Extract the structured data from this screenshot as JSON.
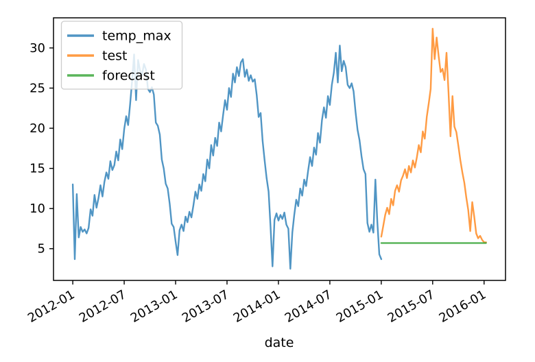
{
  "figure": {
    "background": "#ffffff"
  },
  "chart_data": {
    "type": "line",
    "title": "",
    "xlabel": "date",
    "ylabel": "",
    "grid": false,
    "x_unit": "months since 2012-01",
    "xlim": [
      -2.25,
      50.5
    ],
    "ylim": [
      1.05,
      33.75
    ],
    "xticks": [
      {
        "pos": 0,
        "label": "2012-01"
      },
      {
        "pos": 6,
        "label": "2012-07"
      },
      {
        "pos": 12,
        "label": "2013-01"
      },
      {
        "pos": 18,
        "label": "2013-07"
      },
      {
        "pos": 24,
        "label": "2014-01"
      },
      {
        "pos": 30,
        "label": "2014-07"
      },
      {
        "pos": 36,
        "label": "2015-01"
      },
      {
        "pos": 42,
        "label": "2015-07"
      },
      {
        "pos": 48,
        "label": "2016-01"
      }
    ],
    "yticks": [
      5,
      10,
      15,
      20,
      25,
      30
    ],
    "x_tick_rotation_deg": 30,
    "legend": {
      "position": "upper left",
      "items": [
        {
          "label": "temp_max",
          "color": "#1f77b4"
        },
        {
          "label": "test",
          "color": "#ff7f0e"
        },
        {
          "label": "forecast",
          "color": "#2ca02c"
        }
      ]
    },
    "series": [
      {
        "name": "temp_max",
        "color": "#1f77b4",
        "alpha": 0.78,
        "x_start_month": 0,
        "x_step_months": 0.2308,
        "values": [
          13.0,
          3.7,
          11.8,
          6.4,
          7.7,
          7.1,
          7.4,
          6.9,
          7.6,
          9.9,
          9.1,
          11.7,
          10.1,
          11.3,
          12.9,
          11.5,
          13.3,
          14.5,
          13.7,
          15.9,
          14.8,
          15.4,
          17.1,
          16.0,
          18.6,
          17.4,
          19.9,
          21.5,
          20.4,
          23.0,
          25.9,
          29.2,
          23.5,
          28.5,
          27.2,
          26.6,
          28.0,
          27.3,
          24.9,
          24.5,
          25.1,
          24.2,
          20.7,
          20.3,
          19.2,
          16.1,
          15.0,
          13.1,
          12.5,
          10.6,
          8.1,
          7.7,
          5.9,
          4.2,
          7.3,
          8.0,
          7.2,
          9.0,
          8.3,
          9.6,
          8.9,
          10.4,
          12.1,
          11.2,
          13.0,
          12.2,
          14.3,
          13.4,
          16.1,
          15.0,
          17.9,
          16.6,
          18.8,
          17.8,
          20.7,
          19.6,
          21.6,
          23.5,
          22.3,
          25.0,
          23.9,
          26.8,
          25.7,
          27.6,
          26.5,
          28.2,
          28.6,
          26.4,
          27.3,
          25.9,
          26.6,
          25.8,
          26.1,
          24.1,
          21.4,
          21.9,
          18.4,
          16.0,
          13.8,
          12.1,
          7.8,
          2.8,
          8.6,
          9.4,
          8.5,
          9.2,
          8.7,
          9.5,
          8.0,
          7.5,
          2.5,
          7.0,
          9.2,
          11.1,
          10.3,
          12.5,
          11.6,
          13.6,
          12.8,
          14.7,
          16.4,
          15.3,
          17.6,
          16.7,
          19.4,
          18.2,
          21.0,
          22.6,
          21.3,
          24.0,
          22.9,
          25.4,
          26.9,
          29.4,
          25.7,
          30.3,
          27.1,
          28.4,
          27.6,
          25.4,
          25.0,
          25.6,
          24.6,
          22.0,
          19.8,
          18.5,
          16.5,
          14.9,
          14.3,
          8.2,
          7.1,
          8.0,
          7.0,
          13.6,
          8.4,
          4.3,
          3.7
        ]
      },
      {
        "name": "test",
        "color": "#ff7f0e",
        "alpha": 0.78,
        "x_start_month": 36.0,
        "x_step_months": 0.2308,
        "values": [
          6.5,
          7.8,
          9.2,
          10.1,
          9.3,
          11.2,
          10.4,
          12.2,
          12.9,
          12.1,
          13.5,
          14.1,
          14.9,
          13.8,
          15.3,
          14.5,
          16.0,
          15.1,
          16.4,
          17.9,
          17.0,
          19.6,
          18.7,
          21.4,
          23.1,
          24.9,
          32.4,
          28.6,
          31.3,
          29.0,
          27.0,
          27.4,
          26.0,
          29.4,
          24.5,
          19.0,
          24.0,
          20.2,
          19.5,
          17.8,
          16.0,
          14.5,
          13.2,
          11.4,
          9.8,
          7.2,
          10.8,
          9.0,
          6.9,
          6.3,
          6.6,
          6.1,
          5.8,
          5.8
        ]
      },
      {
        "name": "forecast",
        "color": "#2ca02c",
        "alpha": 0.78,
        "x_start_month": 36.0,
        "x_step_months": 12.23,
        "values": [
          5.7,
          5.7
        ]
      }
    ]
  }
}
